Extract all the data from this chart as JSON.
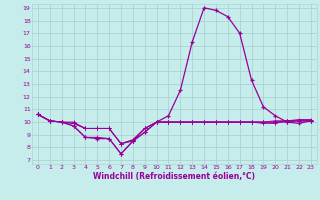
{
  "xlabel": "Windchill (Refroidissement éolien,°C)",
  "bg_color": "#c6eceb",
  "grid_color": "#aad4d3",
  "line_color": "#990099",
  "xmin": 0,
  "xmax": 23,
  "ymin": 7,
  "ymax": 19,
  "hours": [
    0,
    1,
    2,
    3,
    4,
    5,
    6,
    7,
    8,
    9,
    10,
    11,
    12,
    13,
    14,
    15,
    16,
    17,
    18,
    19,
    20,
    21,
    22,
    23
  ],
  "line1": [
    10.6,
    10.1,
    10.0,
    9.7,
    8.8,
    8.8,
    8.7,
    7.5,
    8.5,
    9.2,
    10.0,
    10.0,
    10.0,
    10.0,
    10.0,
    10.0,
    10.0,
    10.0,
    10.0,
    9.9,
    9.9,
    10.1,
    10.1,
    10.1
  ],
  "line2": [
    10.6,
    10.1,
    10.0,
    9.9,
    9.5,
    9.5,
    9.5,
    8.3,
    8.6,
    9.5,
    10.0,
    10.0,
    10.0,
    10.0,
    10.0,
    10.0,
    10.0,
    10.0,
    10.0,
    10.0,
    10.0,
    10.1,
    10.1,
    10.1
  ],
  "line3": [
    10.6,
    10.1,
    10.0,
    10.0,
    9.5,
    9.5,
    9.5,
    8.3,
    8.5,
    9.5,
    10.0,
    10.0,
    10.0,
    10.0,
    10.0,
    10.0,
    10.0,
    10.0,
    10.0,
    10.0,
    10.1,
    10.1,
    10.2,
    10.2
  ],
  "line4": [
    10.6,
    10.1,
    10.0,
    9.9,
    9.5,
    9.5,
    9.5,
    8.3,
    8.6,
    9.5,
    10.0,
    10.0,
    10.0,
    10.0,
    10.0,
    10.0,
    10.0,
    10.0,
    10.0,
    10.0,
    10.0,
    10.0,
    10.1,
    10.1
  ],
  "line_main": [
    10.6,
    10.1,
    10.0,
    9.7,
    8.8,
    8.7,
    8.7,
    7.5,
    8.5,
    9.2,
    10.0,
    10.5,
    12.5,
    16.3,
    19.0,
    18.8,
    18.3,
    17.0,
    13.3,
    11.2,
    10.5,
    10.0,
    9.9,
    10.1
  ]
}
